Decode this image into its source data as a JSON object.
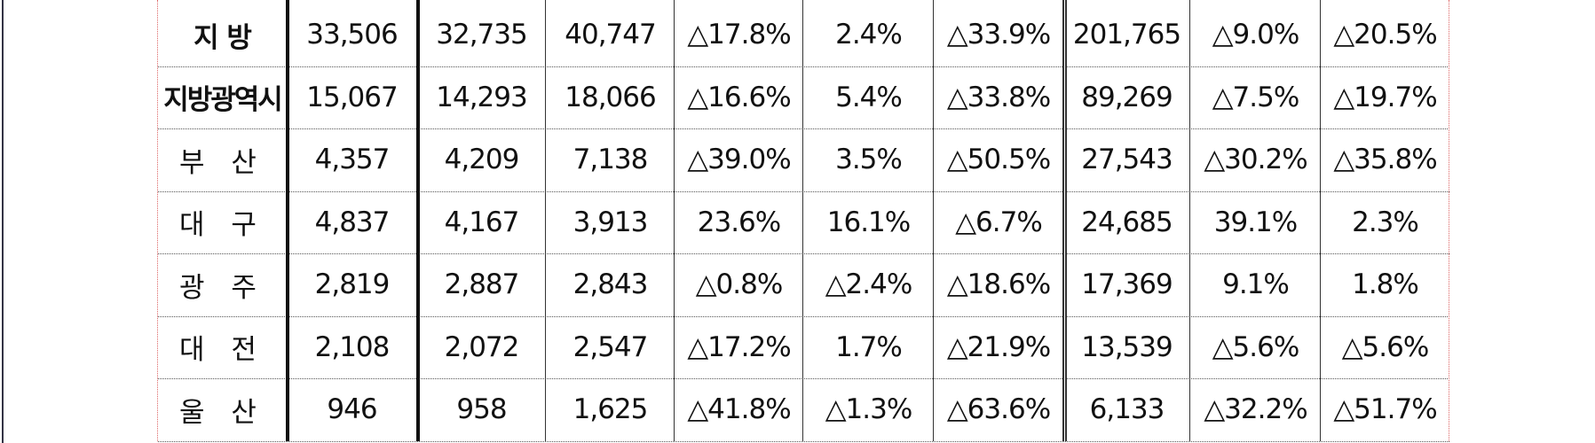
{
  "table": {
    "rows": [
      [
        "지 방",
        "33,506",
        "32,735",
        "40,747",
        "△17.8%",
        "2.4%",
        "△33.9%",
        "201,765",
        "△9.0%",
        "△20.5%"
      ],
      [
        "지방광역시",
        "15,067",
        "14,293",
        "18,066",
        "△16.6%",
        "5.4%",
        "△33.8%",
        "89,269",
        "△7.5%",
        "△19.7%"
      ],
      [
        "부 산",
        "4,357",
        "4,209",
        "7,138",
        "△39.0%",
        "3.5%",
        "△50.5%",
        "27,543",
        "△30.2%",
        "△35.8%"
      ],
      [
        "대 구",
        "4,837",
        "4,167",
        "3,913",
        "23.6%",
        "16.1%",
        "△6.7%",
        "24,685",
        "39.1%",
        "2.3%"
      ],
      [
        "광 주",
        "2,819",
        "2,887",
        "2,843",
        "△0.8%",
        "△2.4%",
        "△18.6%",
        "17,369",
        "9.1%",
        "1.8%"
      ],
      [
        "대 전",
        "2,108",
        "2,072",
        "2,547",
        "△17.2%",
        "1.7%",
        "△21.9%",
        "13,539",
        "△5.6%",
        "△5.6%"
      ],
      [
        "울 산",
        "946",
        "958",
        "1,625",
        "△41.8%",
        "△1.3%",
        "△63.6%",
        "6,133",
        "△32.2%",
        "△51.7%"
      ]
    ]
  }
}
